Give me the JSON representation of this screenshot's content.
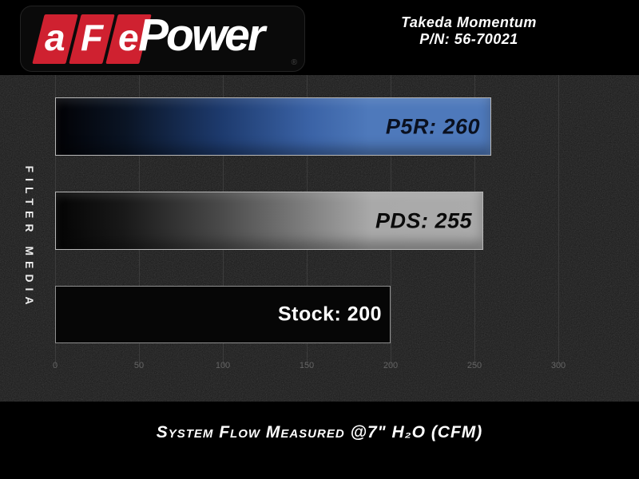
{
  "header": {
    "logo": {
      "letters": [
        "a",
        "F",
        "e"
      ],
      "word": "Power",
      "registered": "®"
    },
    "product": {
      "line1": "Takeda Momentum",
      "line2": "P/N: 56-70021"
    }
  },
  "chart_data": {
    "type": "bar",
    "orientation": "horizontal",
    "title": "",
    "ylabel": "FILTER MEDIA",
    "caption": "System Flow Measured @7\" H₂O (CFM)",
    "categories": [
      "P5R",
      "PDS",
      "Stock"
    ],
    "values": [
      260,
      255,
      200
    ],
    "bar_labels": [
      "P5R: 260",
      "PDS: 255",
      "Stock: 200"
    ],
    "x_ticks": [
      0,
      50,
      100,
      150,
      200,
      250,
      300
    ],
    "xlim": [
      0,
      300
    ],
    "grid": true,
    "legend": "none",
    "bar_colors": {
      "P5R": "#4e79bb",
      "PDS": "#a9a9a9",
      "Stock": "#060606"
    }
  },
  "colors": {
    "background": "#000000",
    "chart_background": "#181818",
    "brand_red": "#cf2130",
    "accent_blue": "#4e79bb",
    "gridline": "#3c3c3c",
    "tick_text": "#646464"
  }
}
